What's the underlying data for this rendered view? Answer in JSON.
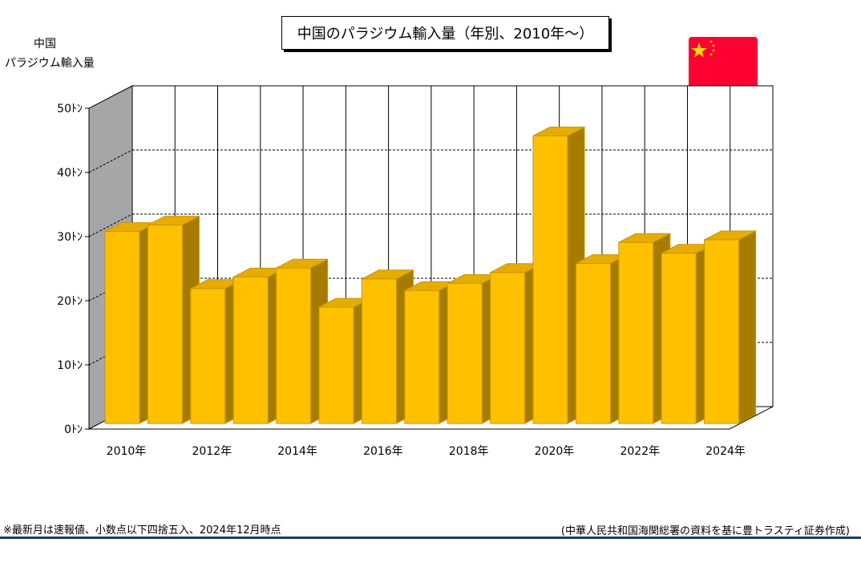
{
  "title": "中国のパラジウム輸入量（年別、2010年～）",
  "ylabel": [
    "中国",
    "パラジウム輸入量"
  ],
  "footnote_left": "※最新月は速報値、小数点以下四捨五入、2024年12月時点",
  "footnote_right": "(中華人民共和国海関総署の資料を基に豊トラスティ証券作成)",
  "colors": {
    "bar_front": "#FFC000",
    "bar_side": "#A67C00",
    "bar_top": "#E6AD00",
    "bar_edge": "#C89600",
    "back_wall": "#ffffff",
    "side_wall": "#A6A6A6",
    "flag_red": "#FF0033",
    "flag_star": "#FFDE00",
    "rule": "#1f3864"
  },
  "chart_data": {
    "type": "bar",
    "categories": [
      "2010年",
      "2011年",
      "2012年",
      "2013年",
      "2014年",
      "2015年",
      "2016年",
      "2017年",
      "2018年",
      "2019年",
      "2020年",
      "2021年",
      "2022年",
      "2023年",
      "2024年"
    ],
    "x_tick_labels": [
      "2010年",
      "",
      "2012年",
      "",
      "2014年",
      "",
      "2016年",
      "",
      "2018年",
      "",
      "2020年",
      "",
      "2022年",
      "",
      "2024年"
    ],
    "values": [
      29.8,
      30.8,
      20.9,
      22.7,
      24.1,
      18.0,
      22.4,
      20.6,
      21.7,
      23.4,
      44.7,
      24.8,
      28.1,
      26.4,
      28.5
    ],
    "yticks": [
      "0ﾄﾝ",
      "10ﾄﾝ",
      "20ﾄﾝ",
      "30ﾄﾝ",
      "40ﾄﾝ",
      "50ﾄﾝ"
    ],
    "ylim": [
      0,
      50
    ],
    "grid": true
  }
}
